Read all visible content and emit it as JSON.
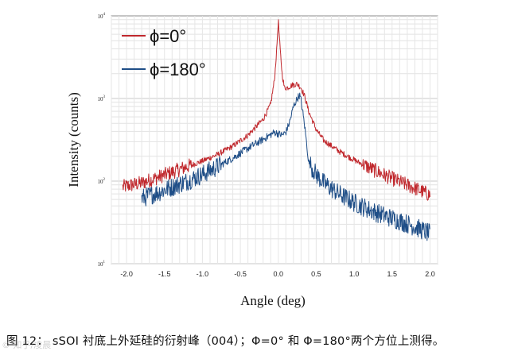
{
  "chart_data": {
    "type": "line",
    "xlabel": "Angle (deg)",
    "ylabel": "Intensity (counts)",
    "xlim": [
      -2.2,
      2.1
    ],
    "ylim": [
      10,
      10000
    ],
    "yscale": "log",
    "grid": true,
    "legend_position": "top-left",
    "x_ticks": [
      "-2.0",
      "-1.5",
      "-1.0",
      "-0.5",
      "0.0",
      "0.5",
      "1.0",
      "1.5",
      "2.0"
    ],
    "y_ticks": [
      {
        "base": "10",
        "exp": "1",
        "value": 10
      },
      {
        "base": "10",
        "exp": "2",
        "value": 100
      },
      {
        "base": "10",
        "exp": "3",
        "value": 1000
      },
      {
        "base": "10",
        "exp": "4",
        "value": 10000
      }
    ],
    "series": [
      {
        "name": "ϕ=0°",
        "color": "#c0282d",
        "x": [
          -2.05,
          -1.8,
          -1.6,
          -1.4,
          -1.2,
          -1.0,
          -0.8,
          -0.6,
          -0.4,
          -0.2,
          -0.1,
          -0.05,
          -0.02,
          0.0,
          0.02,
          0.05,
          0.08,
          0.12,
          0.18,
          0.25,
          0.3,
          0.35,
          0.4,
          0.5,
          0.6,
          0.8,
          1.0,
          1.2,
          1.4,
          1.6,
          1.8,
          2.0
        ],
        "y": [
          85,
          95,
          110,
          128,
          150,
          175,
          210,
          265,
          360,
          560,
          850,
          1700,
          4000,
          9000,
          4500,
          2000,
          1350,
          1350,
          1450,
          1500,
          1350,
          1050,
          700,
          420,
          310,
          230,
          180,
          145,
          118,
          98,
          82,
          68
        ]
      },
      {
        "name": "ϕ=180°",
        "color": "#1f4e87",
        "x": [
          -1.8,
          -1.6,
          -1.4,
          -1.2,
          -1.0,
          -0.8,
          -0.6,
          -0.4,
          -0.2,
          -0.05,
          0.05,
          0.1,
          0.15,
          0.2,
          0.25,
          0.28,
          0.3,
          0.35,
          0.4,
          0.5,
          0.6,
          0.8,
          1.0,
          1.2,
          1.4,
          1.6,
          1.8,
          2.0
        ],
        "y": [
          62,
          72,
          85,
          100,
          120,
          150,
          190,
          250,
          320,
          390,
          360,
          390,
          520,
          800,
          1000,
          1100,
          950,
          450,
          170,
          120,
          95,
          70,
          55,
          45,
          38,
          33,
          28,
          23
        ]
      }
    ]
  },
  "caption": "图 12：  sSOI 衬底上外延硅的衍射峰（004）；Φ=0° 和 Φ=180°两个方位上测得。",
  "watermark": "© 知乎/凌晨"
}
